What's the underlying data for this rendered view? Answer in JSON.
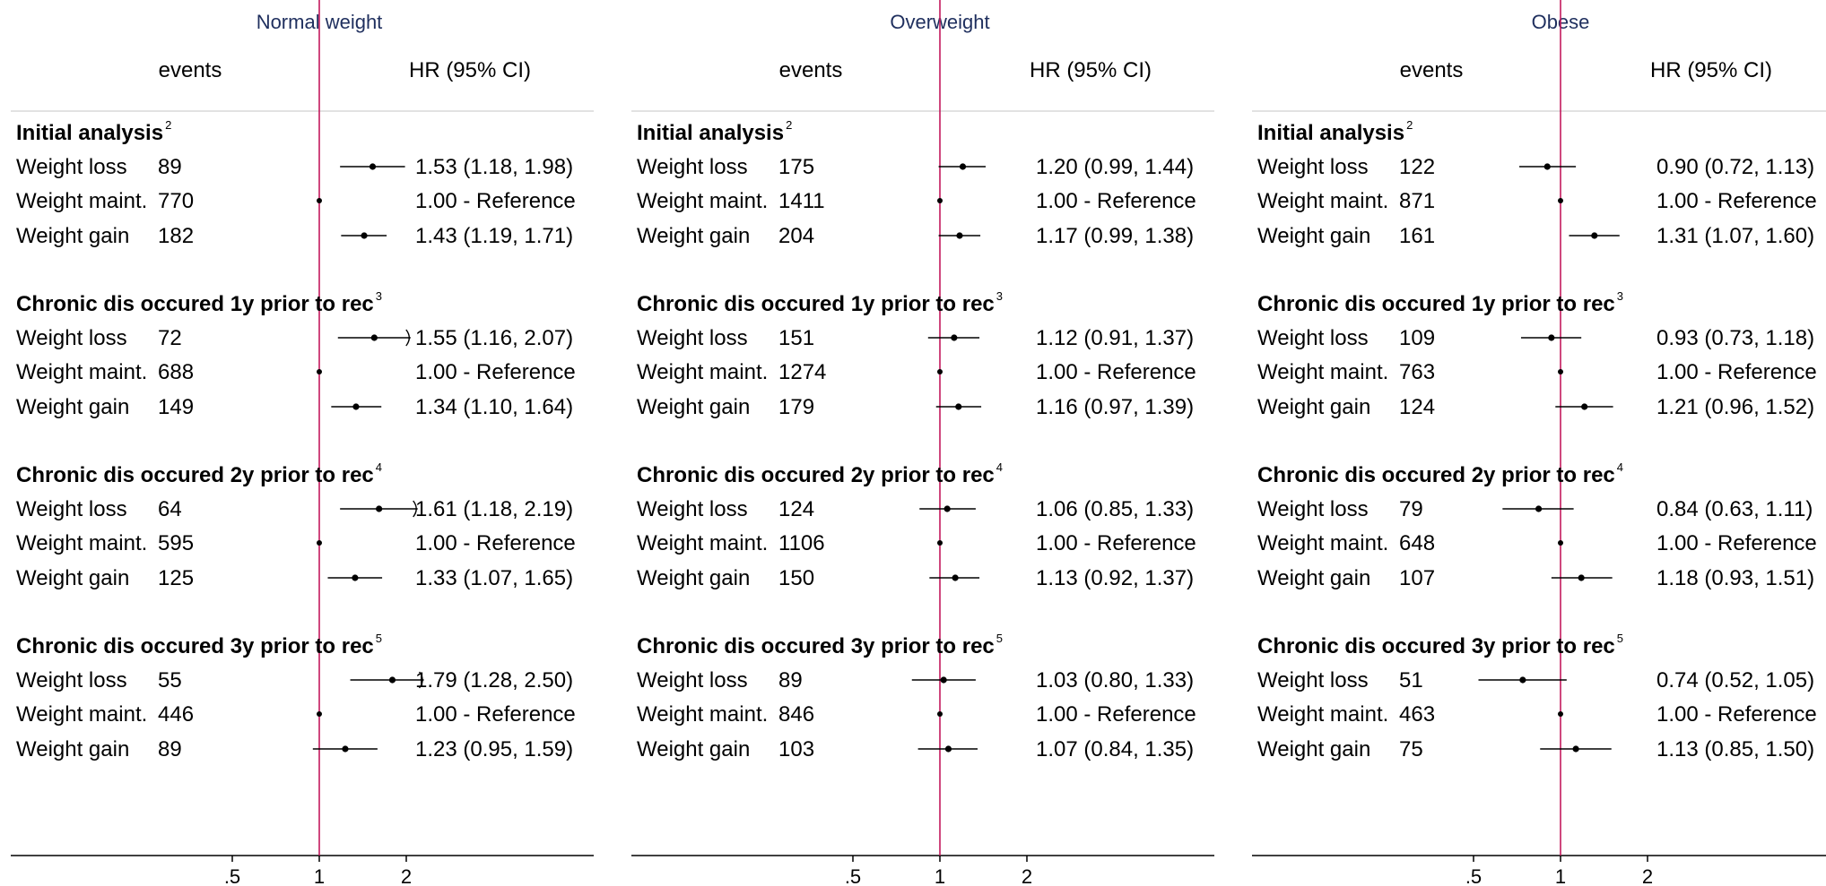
{
  "colors": {
    "reference_line": "#c3195d",
    "panel_title": "#1f2f5e",
    "axis": "#000000",
    "divider": "#d9d9d9",
    "marker": "#000000"
  },
  "chart_data": [
    {
      "type": "forest",
      "title": "Normal weight",
      "col_events": "events",
      "col_hr": "HR (95% CI)",
      "x_scale": "log",
      "x_ticks": [
        ".5",
        "1",
        "2"
      ],
      "x_tick_values": [
        0.5,
        1,
        2
      ],
      "x_range": [
        0.3,
        2.3
      ],
      "reference_x": 1,
      "groups": [
        {
          "label": "Initial analysis",
          "sup": "2",
          "rows": [
            {
              "label": "Weight loss",
              "events": "89",
              "hr_text": "1.53 (1.18, 1.98)",
              "hr": 1.53,
              "lo": 1.18,
              "hi": 1.98
            },
            {
              "label": "Weight maint.",
              "events": "770",
              "hr_text": "1.00 - Reference",
              "hr": 1.0,
              "ref": true
            },
            {
              "label": "Weight gain",
              "events": "182",
              "hr_text": "1.43 (1.19, 1.71)",
              "hr": 1.43,
              "lo": 1.19,
              "hi": 1.71
            }
          ]
        },
        {
          "label": "Chronic dis occured 1y prior to rec",
          "sup": "3",
          "rows": [
            {
              "label": "Weight loss",
              "events": "72",
              "hr_text": "1.55 (1.16, 2.07)",
              "hr": 1.55,
              "lo": 1.16,
              "hi": 2.07,
              "truncated": true
            },
            {
              "label": "Weight maint.",
              "events": "688",
              "hr_text": "1.00 - Reference",
              "hr": 1.0,
              "ref": true
            },
            {
              "label": "Weight gain",
              "events": "149",
              "hr_text": "1.34 (1.10, 1.64)",
              "hr": 1.34,
              "lo": 1.1,
              "hi": 1.64
            }
          ]
        },
        {
          "label": "Chronic dis occured 2y prior to rec",
          "sup": "4",
          "rows": [
            {
              "label": "Weight loss",
              "events": "64",
              "hr_text": "1.61 (1.18, 2.19)",
              "hr": 1.61,
              "lo": 1.18,
              "hi": 2.19,
              "truncated": true
            },
            {
              "label": "Weight maint.",
              "events": "595",
              "hr_text": "1.00 - Reference",
              "hr": 1.0,
              "ref": true
            },
            {
              "label": "Weight gain",
              "events": "125",
              "hr_text": "1.33 (1.07, 1.65)",
              "hr": 1.33,
              "lo": 1.07,
              "hi": 1.65
            }
          ]
        },
        {
          "label": "Chronic dis occured 3y prior to rec",
          "sup": "5",
          "rows": [
            {
              "label": "Weight loss",
              "events": "55",
              "hr_text": "1.79 (1.28, 2.50)",
              "hr": 1.79,
              "lo": 1.28,
              "hi": 2.5,
              "truncated": true
            },
            {
              "label": "Weight maint.",
              "events": "446",
              "hr_text": "1.00 - Reference",
              "hr": 1.0,
              "ref": true
            },
            {
              "label": "Weight gain",
              "events": "89",
              "hr_text": "1.23 (0.95, 1.59)",
              "hr": 1.23,
              "lo": 0.95,
              "hi": 1.59
            }
          ]
        }
      ]
    },
    {
      "type": "forest",
      "title": "Overweight",
      "col_events": "events",
      "col_hr": "HR (95% CI)",
      "x_scale": "log",
      "x_ticks": [
        ".5",
        "1",
        "2"
      ],
      "x_tick_values": [
        0.5,
        1,
        2
      ],
      "x_range": [
        0.3,
        2.3
      ],
      "reference_x": 1,
      "groups": [
        {
          "label": "Initial analysis",
          "sup": "2",
          "rows": [
            {
              "label": "Weight loss",
              "events": "175",
              "hr_text": "1.20 (0.99, 1.44)",
              "hr": 1.2,
              "lo": 0.99,
              "hi": 1.44
            },
            {
              "label": "Weight maint.",
              "events": "1411",
              "hr_text": "1.00 - Reference",
              "hr": 1.0,
              "ref": true
            },
            {
              "label": "Weight gain",
              "events": "204",
              "hr_text": "1.17 (0.99, 1.38)",
              "hr": 1.17,
              "lo": 0.99,
              "hi": 1.38
            }
          ]
        },
        {
          "label": "Chronic dis occured 1y prior to rec",
          "sup": "3",
          "rows": [
            {
              "label": "Weight loss",
              "events": "151",
              "hr_text": "1.12 (0.91, 1.37)",
              "hr": 1.12,
              "lo": 0.91,
              "hi": 1.37
            },
            {
              "label": "Weight maint.",
              "events": "1274",
              "hr_text": "1.00 - Reference",
              "hr": 1.0,
              "ref": true
            },
            {
              "label": "Weight gain",
              "events": "179",
              "hr_text": "1.16 (0.97, 1.39)",
              "hr": 1.16,
              "lo": 0.97,
              "hi": 1.39
            }
          ]
        },
        {
          "label": "Chronic dis occured 2y prior to rec",
          "sup": "4",
          "rows": [
            {
              "label": "Weight loss",
              "events": "124",
              "hr_text": "1.06 (0.85, 1.33)",
              "hr": 1.06,
              "lo": 0.85,
              "hi": 1.33
            },
            {
              "label": "Weight maint.",
              "events": "1106",
              "hr_text": "1.00 - Reference",
              "hr": 1.0,
              "ref": true
            },
            {
              "label": "Weight gain",
              "events": "150",
              "hr_text": "1.13 (0.92, 1.37)",
              "hr": 1.13,
              "lo": 0.92,
              "hi": 1.37
            }
          ]
        },
        {
          "label": "Chronic dis occured 3y prior to rec",
          "sup": "5",
          "rows": [
            {
              "label": "Weight loss",
              "events": "89",
              "hr_text": "1.03 (0.80, 1.33)",
              "hr": 1.03,
              "lo": 0.8,
              "hi": 1.33
            },
            {
              "label": "Weight maint.",
              "events": "846",
              "hr_text": "1.00 - Reference",
              "hr": 1.0,
              "ref": true
            },
            {
              "label": "Weight gain",
              "events": "103",
              "hr_text": "1.07 (0.84, 1.35)",
              "hr": 1.07,
              "lo": 0.84,
              "hi": 1.35
            }
          ]
        }
      ]
    },
    {
      "type": "forest",
      "title": "Obese",
      "col_events": "events",
      "col_hr": "HR (95% CI)",
      "x_scale": "log",
      "x_ticks": [
        ".5",
        "1",
        "2"
      ],
      "x_tick_values": [
        0.5,
        1,
        2
      ],
      "x_range": [
        0.3,
        2.3
      ],
      "reference_x": 1,
      "groups": [
        {
          "label": "Initial analysis",
          "sup": "2",
          "rows": [
            {
              "label": "Weight loss",
              "events": "122",
              "hr_text": "0.90 (0.72, 1.13)",
              "hr": 0.9,
              "lo": 0.72,
              "hi": 1.13
            },
            {
              "label": "Weight maint.",
              "events": "871",
              "hr_text": "1.00 - Reference",
              "hr": 1.0,
              "ref": true
            },
            {
              "label": "Weight gain",
              "events": "161",
              "hr_text": "1.31 (1.07, 1.60)",
              "hr": 1.31,
              "lo": 1.07,
              "hi": 1.6
            }
          ]
        },
        {
          "label": "Chronic dis occured 1y prior to rec",
          "sup": "3",
          "rows": [
            {
              "label": "Weight loss",
              "events": "109",
              "hr_text": "0.93 (0.73, 1.18)",
              "hr": 0.93,
              "lo": 0.73,
              "hi": 1.18
            },
            {
              "label": "Weight maint.",
              "events": "763",
              "hr_text": "1.00 - Reference",
              "hr": 1.0,
              "ref": true
            },
            {
              "label": "Weight gain",
              "events": "124",
              "hr_text": "1.21 (0.96, 1.52)",
              "hr": 1.21,
              "lo": 0.96,
              "hi": 1.52
            }
          ]
        },
        {
          "label": "Chronic dis occured 2y prior to rec",
          "sup": "4",
          "rows": [
            {
              "label": "Weight loss",
              "events": "79",
              "hr_text": "0.84 (0.63, 1.11)",
              "hr": 0.84,
              "lo": 0.63,
              "hi": 1.11
            },
            {
              "label": "Weight maint.",
              "events": "648",
              "hr_text": "1.00 - Reference",
              "hr": 1.0,
              "ref": true
            },
            {
              "label": "Weight gain",
              "events": "107",
              "hr_text": "1.18 (0.93, 1.51)",
              "hr": 1.18,
              "lo": 0.93,
              "hi": 1.51
            }
          ]
        },
        {
          "label": "Chronic dis occured 3y prior to rec",
          "sup": "5",
          "rows": [
            {
              "label": "Weight loss",
              "events": "51",
              "hr_text": "0.74 (0.52, 1.05)",
              "hr": 0.74,
              "lo": 0.52,
              "hi": 1.05
            },
            {
              "label": "Weight maint.",
              "events": "463",
              "hr_text": "1.00 - Reference",
              "hr": 1.0,
              "ref": true
            },
            {
              "label": "Weight gain",
              "events": "75",
              "hr_text": "1.13 (0.85, 1.50)",
              "hr": 1.13,
              "lo": 0.85,
              "hi": 1.5
            }
          ]
        }
      ]
    }
  ]
}
